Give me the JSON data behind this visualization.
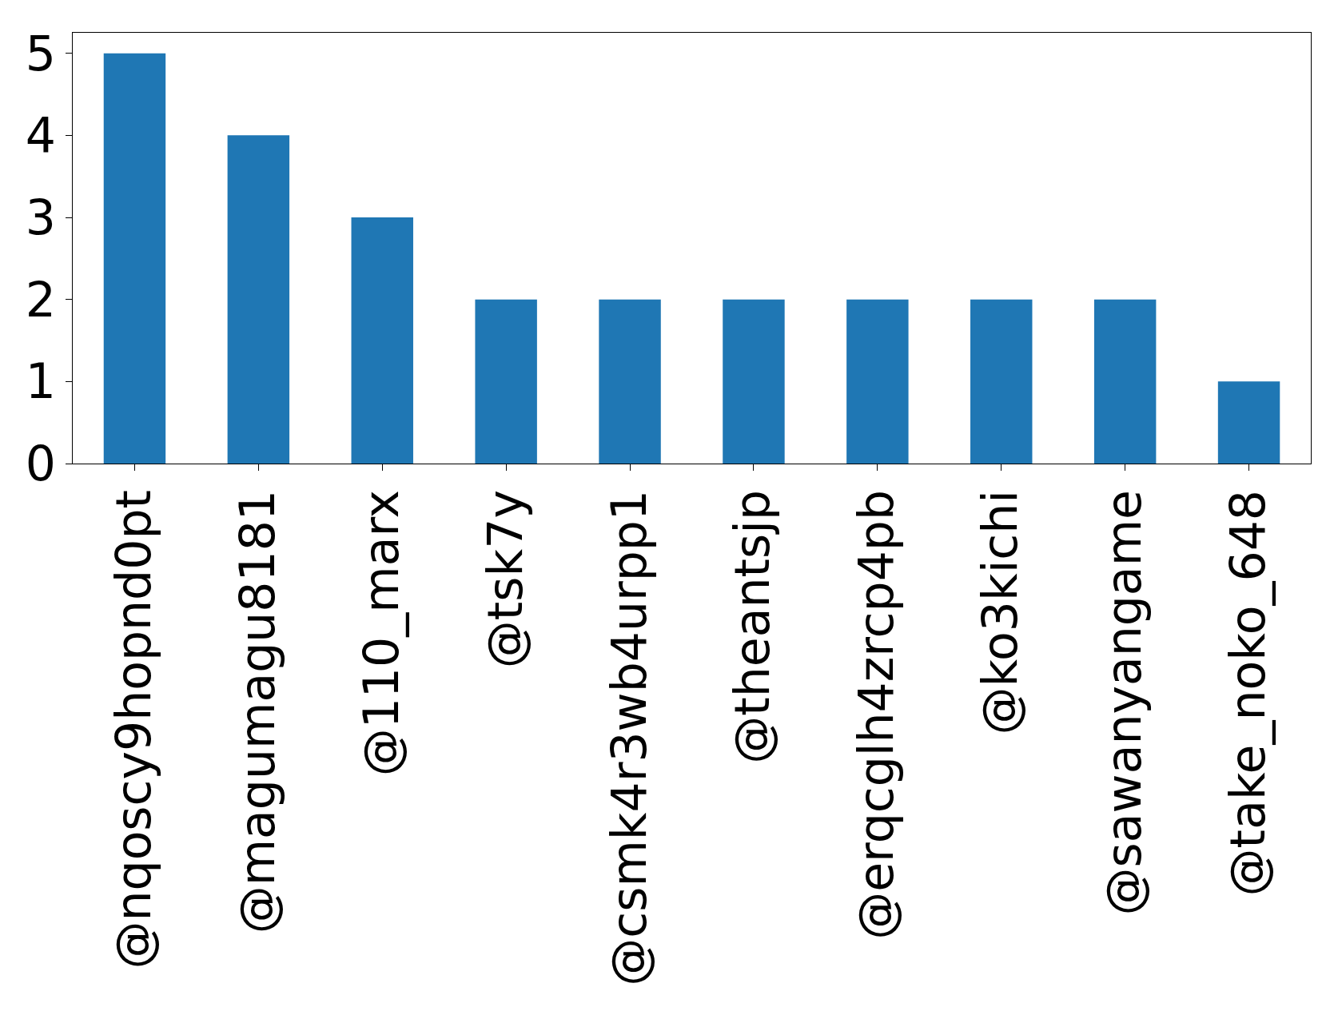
{
  "chart_data": {
    "type": "bar",
    "categories": [
      "@nqoscy9hopnd0pt",
      "@magumagu8181",
      "@110_marx",
      "@tsk7y",
      "@csmk4r3wb4urpp1",
      "@theantsjp",
      "@erqcglh4zrcp4pb",
      "@ko3kichi",
      "@sawanyangame",
      "@take_noko_648"
    ],
    "values": [
      5,
      4,
      3,
      2,
      2,
      2,
      2,
      2,
      2,
      1
    ],
    "color": "#1f77b4",
    "ylim": [
      0,
      5.25
    ],
    "yticks": [
      0,
      1,
      2,
      3,
      4,
      5
    ]
  }
}
